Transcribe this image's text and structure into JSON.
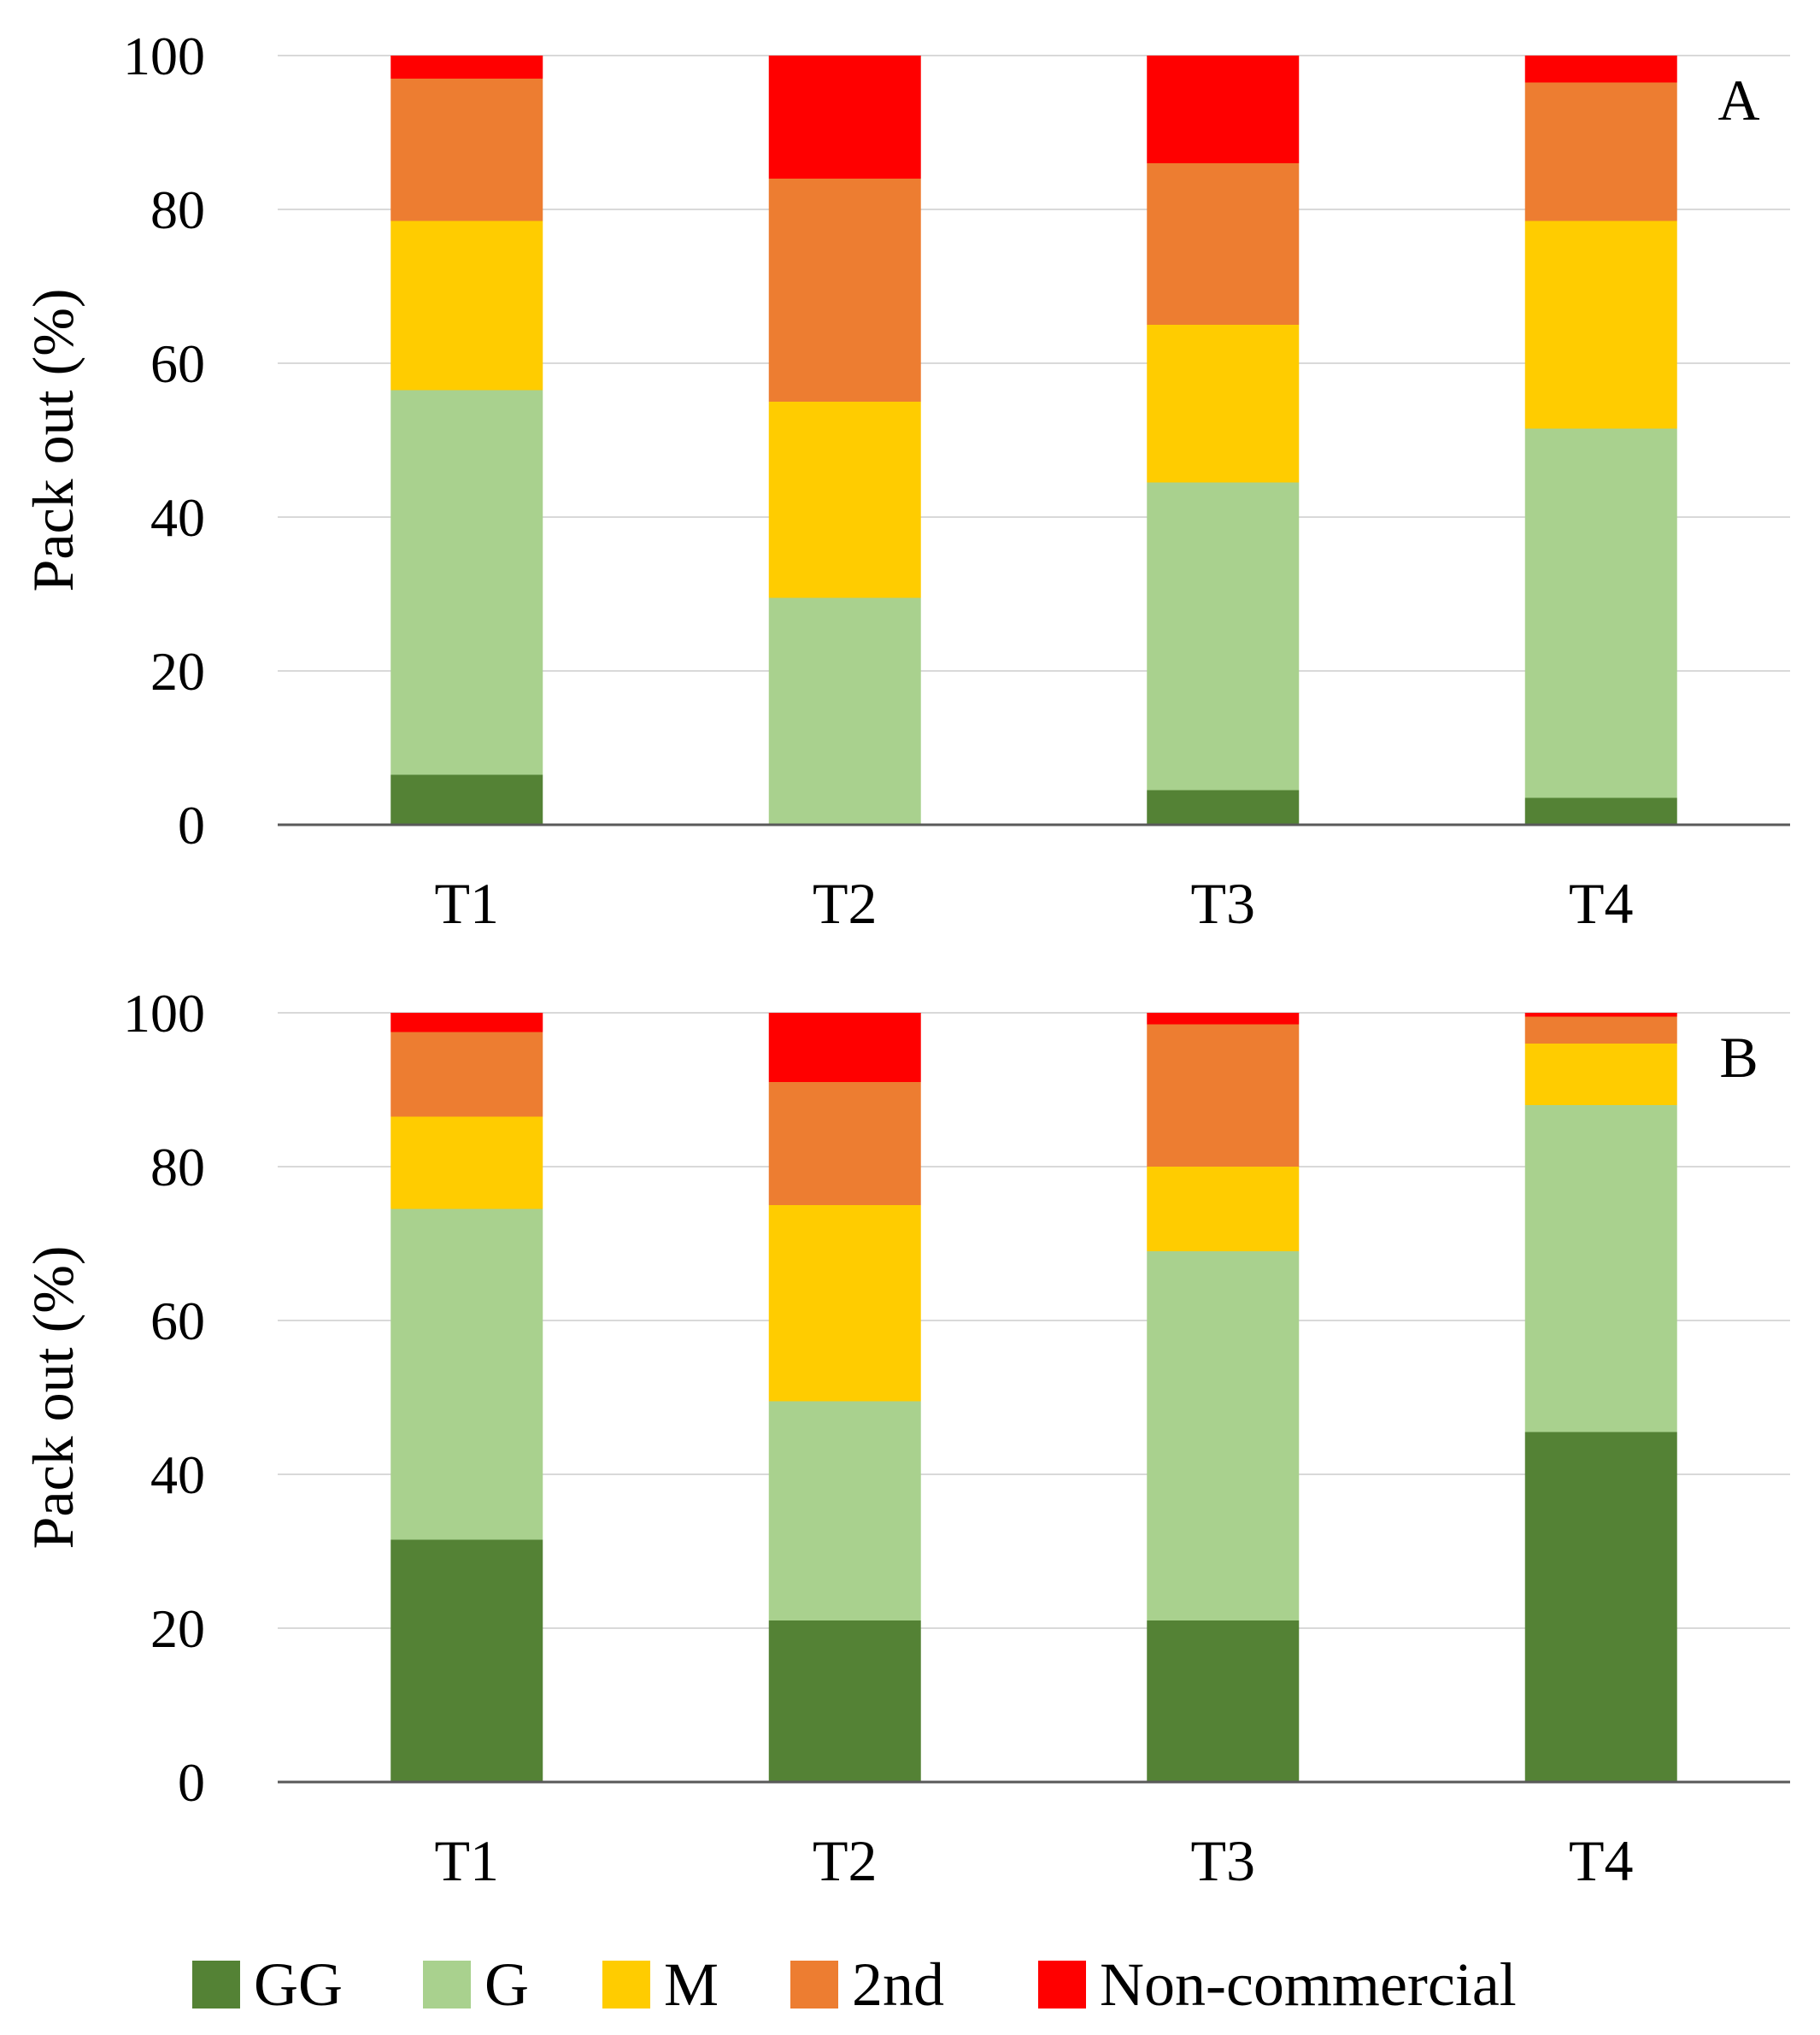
{
  "chart_data": [
    {
      "type": "bar",
      "stacked": true,
      "panel_label": "A",
      "categories": [
        "T1",
        "T2",
        "T3",
        "T4"
      ],
      "series": [
        {
          "name": "GG",
          "color": "#548235",
          "values": [
            6.5,
            0,
            4.5,
            3.5
          ]
        },
        {
          "name": "G",
          "color": "#a9d18e",
          "values": [
            50,
            29.5,
            40,
            48
          ]
        },
        {
          "name": "M",
          "color": "#ffcc00",
          "values": [
            22,
            25.5,
            20.5,
            27
          ]
        },
        {
          "name": "2nd",
          "color": "#ed7d31",
          "values": [
            18.5,
            29,
            21,
            18
          ]
        },
        {
          "name": "Non-commercial",
          "color": "#ff0000",
          "values": [
            3,
            16,
            14,
            3.5
          ]
        }
      ],
      "ylabel": "Pack out (%)",
      "xlabel": "",
      "ylim": [
        0,
        100
      ],
      "yticks": [
        0,
        20,
        40,
        60,
        80,
        100
      ],
      "grid": true
    },
    {
      "type": "bar",
      "stacked": true,
      "panel_label": "B",
      "categories": [
        "T1",
        "T2",
        "T3",
        "T4"
      ],
      "series": [
        {
          "name": "GG",
          "color": "#548235",
          "values": [
            31.5,
            21,
            21,
            45.5
          ]
        },
        {
          "name": "G",
          "color": "#a9d18e",
          "values": [
            43,
            28.5,
            48,
            42.5
          ]
        },
        {
          "name": "M",
          "color": "#ffcc00",
          "values": [
            12,
            25.5,
            11,
            8
          ]
        },
        {
          "name": "2nd",
          "color": "#ed7d31",
          "values": [
            11,
            16,
            18.5,
            3.5
          ]
        },
        {
          "name": "Non-commercial",
          "color": "#ff0000",
          "values": [
            2.5,
            9,
            1.5,
            0.5
          ]
        }
      ],
      "ylabel": "Pack out (%)",
      "xlabel": "",
      "ylim": [
        0,
        100
      ],
      "yticks": [
        0,
        20,
        40,
        60,
        80,
        100
      ],
      "grid": true
    }
  ],
  "legend": {
    "position": "bottom",
    "entries": [
      {
        "name": "GG",
        "color": "#548235"
      },
      {
        "name": "G",
        "color": "#a9d18e"
      },
      {
        "name": "M",
        "color": "#ffcc00"
      },
      {
        "name": "2nd",
        "color": "#ed7d31"
      },
      {
        "name": "Non-commercial",
        "color": "#ff0000"
      }
    ]
  },
  "colors": {
    "grid": "#d9d9d9",
    "axis": "#595959",
    "text": "#000000"
  }
}
